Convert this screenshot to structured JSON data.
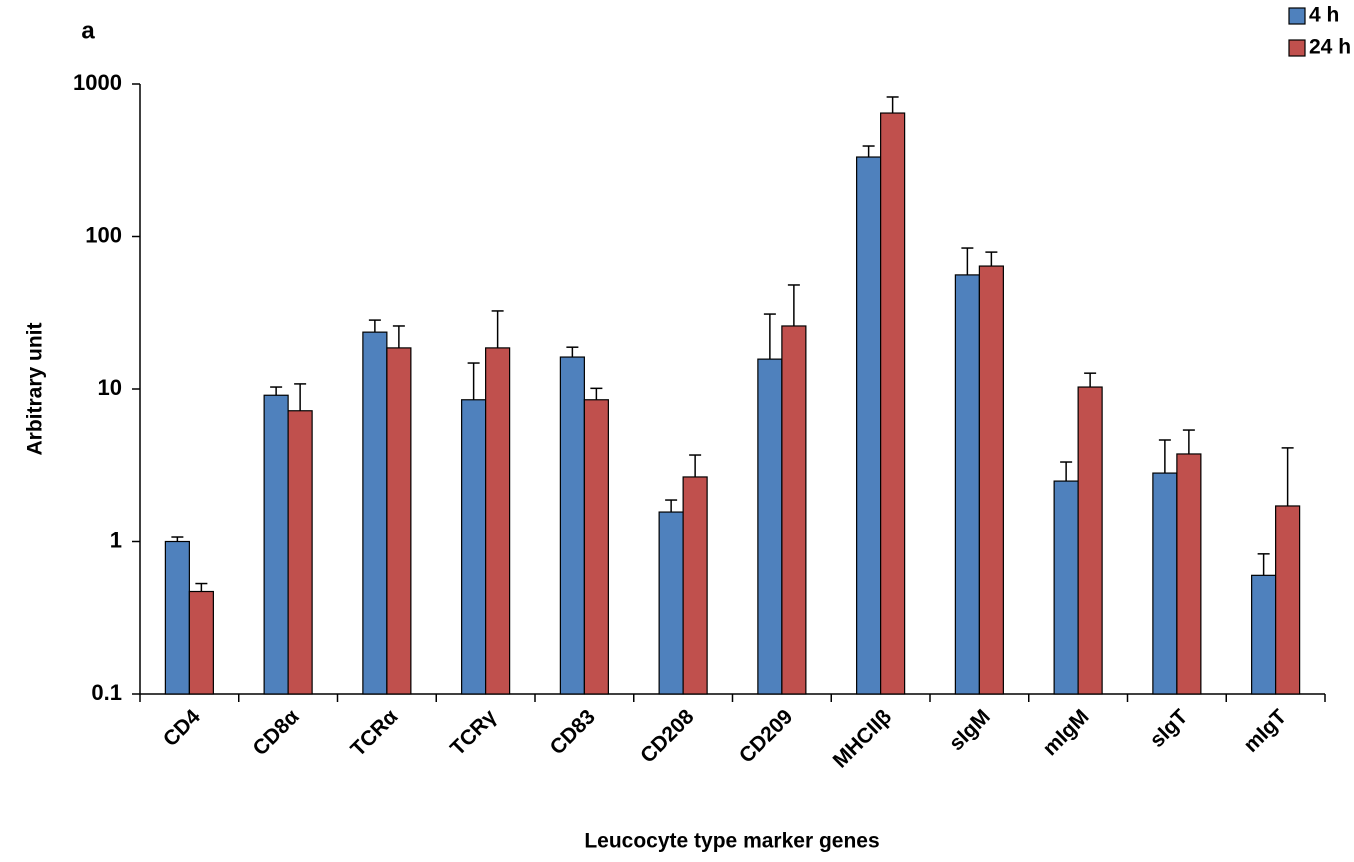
{
  "chart_data": {
    "type": "bar",
    "panel_label": "a",
    "log_y": true,
    "y_label": "Arbitrary unit",
    "x_label": "Leucocyte type marker genes",
    "categories": [
      "CD4",
      "CD8α",
      "TCRα",
      "TCRγ",
      "CD83",
      "CD208",
      "CD209",
      "MHCIIβ",
      "sIgM",
      "mIgM",
      "sIgT",
      "mIgT"
    ],
    "series": [
      {
        "name": "4 h",
        "color": "#4f81bd",
        "values": [
          1.0,
          9.1,
          23.6,
          8.5,
          16.2,
          1.56,
          15.7,
          332,
          56,
          2.49,
          2.81,
          0.6
        ],
        "errors": [
          0.07,
          1.2,
          4.7,
          6.3,
          2.6,
          0.31,
          15.3,
          60,
          28,
          0.83,
          1.82,
          0.23
        ]
      },
      {
        "name": "24 h",
        "color": "#c0504d",
        "values": [
          0.47,
          7.2,
          18.6,
          18.6,
          8.5,
          2.65,
          25.9,
          645,
          64,
          10.3,
          3.75,
          1.71
        ],
        "errors": [
          0.06,
          3.6,
          7.3,
          13.9,
          1.6,
          1.04,
          22.2,
          177,
          15,
          2.4,
          1.63,
          2.4
        ]
      }
    ],
    "ylim": [
      0.1,
      1000
    ],
    "yticks": [
      0.1,
      1,
      10,
      100,
      1000
    ],
    "legend": "top-right"
  }
}
